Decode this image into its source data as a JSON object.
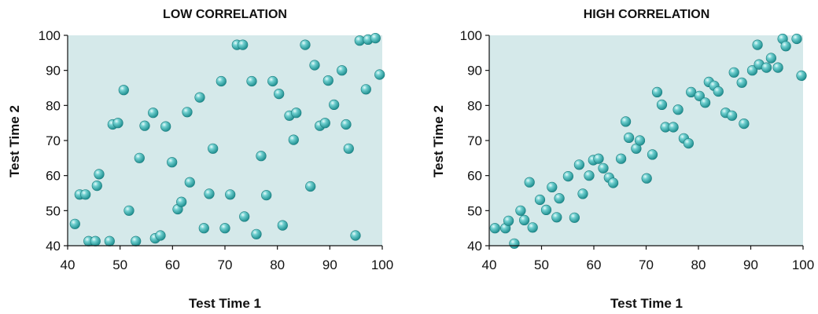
{
  "chart_data": [
    {
      "type": "scatter",
      "title": "LOW CORRELATION",
      "xlabel": "Test Time 1",
      "ylabel": "Test Time 2",
      "xlim": [
        40,
        100
      ],
      "ylim": [
        40,
        100
      ],
      "xticks": [
        40,
        50,
        60,
        70,
        80,
        90,
        100
      ],
      "yticks": [
        40,
        50,
        60,
        70,
        80,
        90,
        100
      ],
      "grid": false,
      "marker_color": "#3fb0b0",
      "background_color": "#d5e9ea",
      "points": [
        [
          41.4,
          46.2
        ],
        [
          42.3,
          54.6
        ],
        [
          43.4,
          54.6
        ],
        [
          44.0,
          41.3
        ],
        [
          45.3,
          41.3
        ],
        [
          45.6,
          57.1
        ],
        [
          46.0,
          60.4
        ],
        [
          48.0,
          41.3
        ],
        [
          48.6,
          74.6
        ],
        [
          49.6,
          75.0
        ],
        [
          50.7,
          84.4
        ],
        [
          51.7,
          50.0
        ],
        [
          53.0,
          41.3
        ],
        [
          53.7,
          65.0
        ],
        [
          54.7,
          74.2
        ],
        [
          56.3,
          77.9
        ],
        [
          56.7,
          42.1
        ],
        [
          57.7,
          42.9
        ],
        [
          58.7,
          74.0
        ],
        [
          59.9,
          63.8
        ],
        [
          61.0,
          50.4
        ],
        [
          61.7,
          52.5
        ],
        [
          62.8,
          78.1
        ],
        [
          63.3,
          58.1
        ],
        [
          65.2,
          82.3
        ],
        [
          66.0,
          45.0
        ],
        [
          67.0,
          54.8
        ],
        [
          67.7,
          67.7
        ],
        [
          69.3,
          86.9
        ],
        [
          70.0,
          45.0
        ],
        [
          71.0,
          54.6
        ],
        [
          72.3,
          97.3
        ],
        [
          73.4,
          97.3
        ],
        [
          73.7,
          48.3
        ],
        [
          75.1,
          86.9
        ],
        [
          76.0,
          43.3
        ],
        [
          76.9,
          65.6
        ],
        [
          77.9,
          54.4
        ],
        [
          79.1,
          86.9
        ],
        [
          80.3,
          83.3
        ],
        [
          81.0,
          45.8
        ],
        [
          82.3,
          77.1
        ],
        [
          83.1,
          70.2
        ],
        [
          83.6,
          77.9
        ],
        [
          85.3,
          97.3
        ],
        [
          86.3,
          56.9
        ],
        [
          87.1,
          91.5
        ],
        [
          88.1,
          74.2
        ],
        [
          89.1,
          75.0
        ],
        [
          89.7,
          87.1
        ],
        [
          90.8,
          80.2
        ],
        [
          92.3,
          90.0
        ],
        [
          93.1,
          74.6
        ],
        [
          93.6,
          67.7
        ],
        [
          94.9,
          42.9
        ],
        [
          95.7,
          98.5
        ],
        [
          96.9,
          84.6
        ],
        [
          97.3,
          98.8
        ],
        [
          98.7,
          99.2
        ],
        [
          99.5,
          88.8
        ]
      ]
    },
    {
      "type": "scatter",
      "title": "HIGH CORRELATION",
      "xlabel": "Test Time 1",
      "ylabel": "Test Time 2",
      "xlim": [
        40,
        100
      ],
      "ylim": [
        40,
        100
      ],
      "xticks": [
        40,
        50,
        60,
        70,
        80,
        90,
        100
      ],
      "yticks": [
        40,
        50,
        60,
        70,
        80,
        90,
        100
      ],
      "grid": false,
      "marker_color": "#3fb0b0",
      "background_color": "#d5e9ea",
      "points": [
        [
          41.1,
          45.0
        ],
        [
          43.1,
          45.0
        ],
        [
          43.7,
          47.1
        ],
        [
          44.8,
          40.6
        ],
        [
          46.0,
          50.0
        ],
        [
          46.7,
          47.3
        ],
        [
          47.7,
          58.1
        ],
        [
          48.3,
          45.2
        ],
        [
          49.7,
          53.1
        ],
        [
          50.9,
          50.2
        ],
        [
          52.0,
          56.7
        ],
        [
          52.9,
          48.1
        ],
        [
          53.4,
          53.5
        ],
        [
          55.1,
          59.8
        ],
        [
          56.3,
          48.0
        ],
        [
          57.2,
          63.1
        ],
        [
          57.9,
          54.8
        ],
        [
          59.1,
          60.0
        ],
        [
          59.9,
          64.4
        ],
        [
          60.9,
          64.8
        ],
        [
          61.8,
          62.1
        ],
        [
          62.9,
          59.4
        ],
        [
          63.7,
          57.9
        ],
        [
          65.2,
          64.8
        ],
        [
          66.1,
          75.4
        ],
        [
          66.7,
          70.8
        ],
        [
          68.1,
          67.7
        ],
        [
          68.8,
          70.0
        ],
        [
          70.1,
          59.2
        ],
        [
          71.2,
          66.0
        ],
        [
          72.1,
          83.8
        ],
        [
          73.0,
          80.2
        ],
        [
          73.7,
          73.8
        ],
        [
          75.2,
          73.8
        ],
        [
          76.1,
          78.8
        ],
        [
          77.2,
          70.6
        ],
        [
          78.1,
          69.2
        ],
        [
          78.6,
          83.8
        ],
        [
          80.2,
          82.7
        ],
        [
          81.3,
          80.8
        ],
        [
          82.0,
          86.7
        ],
        [
          83.0,
          85.6
        ],
        [
          83.8,
          84.0
        ],
        [
          85.2,
          77.9
        ],
        [
          86.4,
          77.1
        ],
        [
          86.8,
          89.4
        ],
        [
          88.3,
          86.5
        ],
        [
          88.7,
          74.8
        ],
        [
          90.3,
          90.0
        ],
        [
          91.3,
          97.3
        ],
        [
          91.6,
          91.7
        ],
        [
          93.0,
          90.8
        ],
        [
          93.9,
          93.5
        ],
        [
          95.2,
          90.8
        ],
        [
          96.1,
          99.0
        ],
        [
          96.7,
          96.9
        ],
        [
          98.8,
          99.0
        ],
        [
          99.7,
          88.5
        ]
      ]
    }
  ]
}
